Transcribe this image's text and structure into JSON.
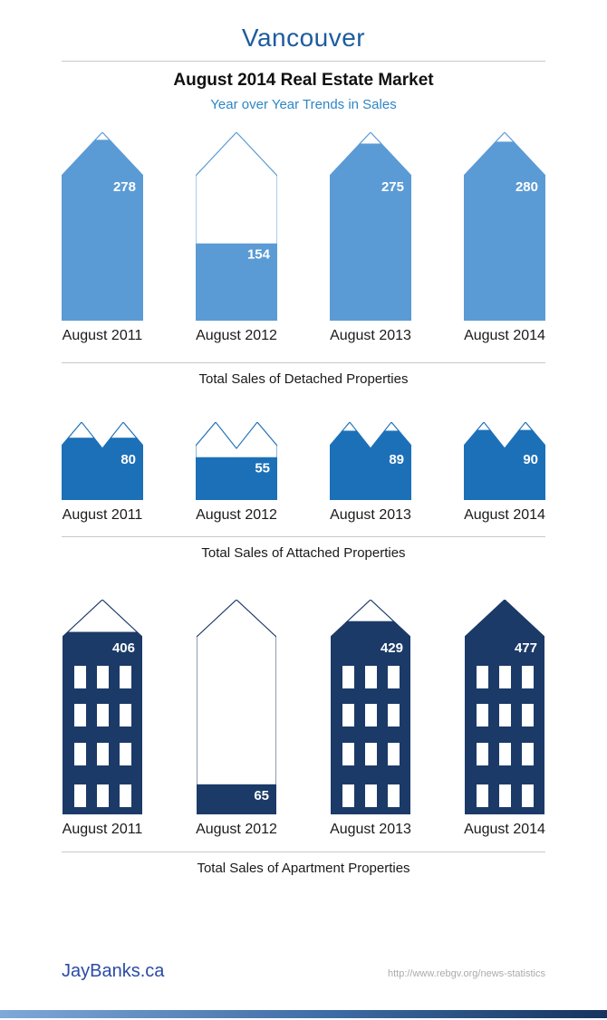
{
  "header": {
    "title": "Vancouver",
    "heading": "August 2014 Real Estate Market",
    "subheading": "Year over Year Trends in Sales"
  },
  "chart_data": [
    {
      "type": "bar",
      "variant": "pictorial",
      "pictogram": "detached-house",
      "title": "Total Sales of Detached Properties",
      "categories": [
        "August 2011",
        "August 2012",
        "August 2013",
        "August 2014"
      ],
      "values": [
        278,
        154,
        275,
        280
      ],
      "fill_pct": [
        96,
        41,
        94,
        95
      ],
      "fill_color": "#5B9BD5",
      "value_label_color": "#FFFFFF",
      "gridlines": false,
      "legend": "none"
    },
    {
      "type": "bar",
      "variant": "pictorial",
      "pictogram": "attached-house",
      "title": "Total Sales of Attached Properties",
      "categories": [
        "August 2011",
        "August 2012",
        "August 2013",
        "August 2014"
      ],
      "values": [
        80,
        55,
        89,
        90
      ],
      "fill_pct": [
        80,
        55,
        89,
        90
      ],
      "fill_color": "#1C70B8",
      "value_label_color": "#FFFFFF",
      "gridlines": false,
      "legend": "none"
    },
    {
      "type": "bar",
      "variant": "pictorial",
      "pictogram": "apartment-building",
      "title": "Total Sales of Apartment Properties",
      "categories": [
        "August 2011",
        "August 2012",
        "August 2013",
        "August 2014"
      ],
      "values": [
        406,
        65,
        429,
        477
      ],
      "fill_pct": [
        85,
        14,
        90,
        100
      ],
      "windows_visible": [
        true,
        false,
        true,
        true
      ],
      "fill_color": "#1B3A68",
      "value_label_color": "#FFFFFF",
      "gridlines": false,
      "legend": "none"
    }
  ],
  "footer": {
    "brand": "JayBanks.ca",
    "source_url": "http://www.rebgv.org/news-statistics"
  },
  "colors": {
    "title": "#1C5C9E",
    "subheading": "#2E86C6",
    "divider": "#C9C9C9",
    "label": "#1A1A1A",
    "brand": "#2B4BA5",
    "url": "#ABABAB",
    "bottom_bar_start": "#7FA8D9",
    "bottom_bar_end": "#16345E"
  }
}
